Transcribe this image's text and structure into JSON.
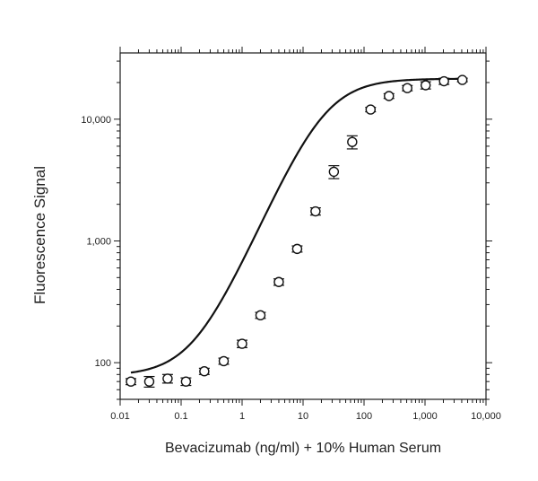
{
  "chart_data": {
    "type": "scatter",
    "xlabel": "Bevacizumab (ng/ml) + 10% Human Serum",
    "ylabel": "Fluorescence Signal",
    "xscale": "log",
    "yscale": "log",
    "xlim": [
      0.01,
      10000
    ],
    "ylim": [
      50,
      35000
    ],
    "xticks": [
      {
        "value": 0.01,
        "label": "0.01"
      },
      {
        "value": 0.1,
        "label": "0.1"
      },
      {
        "value": 1,
        "label": "1"
      },
      {
        "value": 10,
        "label": "10"
      },
      {
        "value": 100,
        "label": "100"
      },
      {
        "value": 1000,
        "label": "1,000"
      },
      {
        "value": 10000,
        "label": "10,000"
      }
    ],
    "yticks": [
      {
        "value": 100,
        "label": "100"
      },
      {
        "value": 1000,
        "label": "1,000"
      },
      {
        "value": 10000,
        "label": "10,000"
      }
    ],
    "grid": false,
    "series": [
      {
        "marker": "open-circle",
        "x": [
          0.015,
          0.03,
          0.06,
          0.12,
          0.24,
          0.5,
          1,
          2,
          4,
          8,
          16,
          32,
          64,
          128,
          256,
          512,
          1024,
          2048,
          4096
        ],
        "y": [
          70,
          70,
          74,
          70,
          85,
          103,
          143,
          245,
          460,
          860,
          1750,
          3700,
          6500,
          12000,
          15500,
          18000,
          19000,
          20500,
          21000
        ],
        "err": [
          4,
          7,
          6,
          5,
          5,
          6,
          10,
          14,
          28,
          50,
          120,
          450,
          800,
          500,
          700,
          900,
          1300,
          1200,
          700
        ]
      }
    ],
    "fit_curve": {
      "type": "4PL",
      "bottom": 78,
      "top": 21500,
      "ec50": 22,
      "hill": 1.15
    }
  }
}
